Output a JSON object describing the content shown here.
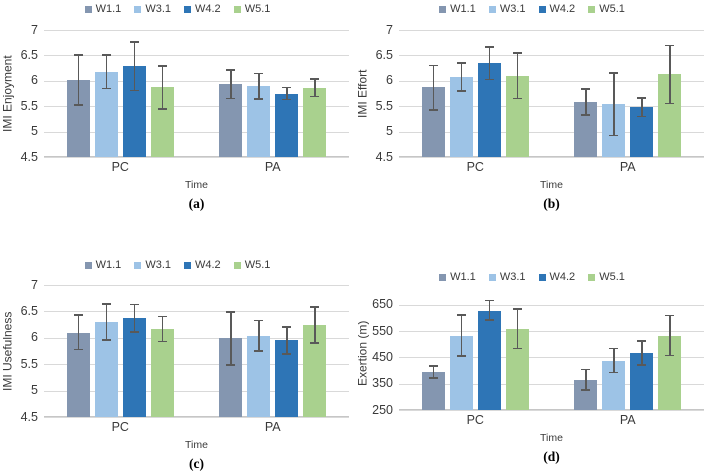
{
  "style": {
    "error_bar_color": "#595959",
    "gridline_color": "#d9d9d9",
    "axis_line_color": "#c6c6c6",
    "text_color": "#3a3a3a",
    "background": "#ffffff"
  },
  "chart_data": [
    {
      "type": "bar",
      "panel": "(a)",
      "ylabel": "IMI Enjoyment",
      "xlabel": "Time",
      "categories": [
        "PC",
        "PA"
      ],
      "yticks": [
        7,
        6.5,
        6,
        5.5,
        5,
        4.5
      ],
      "ylim": [
        4.5,
        7
      ],
      "plot_max": 7,
      "grid": true,
      "legend_position": "top",
      "error_bars": true,
      "series": [
        {
          "name": "W1.1",
          "color": "#8496B0",
          "values": [
            6.02,
            5.93
          ],
          "err_low": [
            5.52,
            5.65
          ],
          "err_high": [
            6.51,
            6.21
          ]
        },
        {
          "name": "W3.1",
          "color": "#9DC3E6",
          "values": [
            6.18,
            5.89
          ],
          "err_low": [
            5.85,
            5.64
          ],
          "err_high": [
            6.51,
            6.14
          ]
        },
        {
          "name": "W4.2",
          "color": "#2E75B6",
          "values": [
            6.29,
            5.75
          ],
          "err_low": [
            5.81,
            5.63
          ],
          "err_high": [
            6.76,
            5.87
          ]
        },
        {
          "name": "W5.1",
          "color": "#A9D18E",
          "values": [
            5.87,
            5.86
          ],
          "err_low": [
            5.45,
            5.69
          ],
          "err_high": [
            6.29,
            6.04
          ]
        }
      ]
    },
    {
      "type": "bar",
      "panel": "(b)",
      "ylabel": "IMI Effort",
      "xlabel": "Time",
      "categories": [
        "PC",
        "PA"
      ],
      "yticks": [
        7,
        6.5,
        6,
        5.5,
        5,
        4.5
      ],
      "ylim": [
        4.5,
        7
      ],
      "plot_max": 7,
      "grid": true,
      "legend_position": "top",
      "error_bars": true,
      "series": [
        {
          "name": "W1.1",
          "color": "#8496B0",
          "values": [
            5.87,
            5.58
          ],
          "err_low": [
            5.43,
            5.33
          ],
          "err_high": [
            6.3,
            5.84
          ]
        },
        {
          "name": "W3.1",
          "color": "#9DC3E6",
          "values": [
            6.08,
            5.54
          ],
          "err_low": [
            5.8,
            4.92
          ],
          "err_high": [
            6.35,
            6.15
          ]
        },
        {
          "name": "W4.2",
          "color": "#2E75B6",
          "values": [
            6.35,
            5.48
          ],
          "err_low": [
            6.03,
            5.3
          ],
          "err_high": [
            6.67,
            5.66
          ]
        },
        {
          "name": "W5.1",
          "color": "#A9D18E",
          "values": [
            6.09,
            6.13
          ],
          "err_low": [
            5.65,
            5.55
          ],
          "err_high": [
            6.55,
            6.7
          ]
        }
      ]
    },
    {
      "type": "bar",
      "panel": "(c)",
      "ylabel": "IMI Usefulness",
      "xlabel": "Time",
      "categories": [
        "PC",
        "PA"
      ],
      "yticks": [
        7,
        6.5,
        6,
        5.5,
        5,
        4.5
      ],
      "ylim": [
        4.5,
        7
      ],
      "plot_max": 7,
      "grid": true,
      "legend_position": "top",
      "error_bars": true,
      "series": [
        {
          "name": "W1.1",
          "color": "#8496B0",
          "values": [
            6.1,
            5.99
          ],
          "err_low": [
            5.78,
            5.49
          ],
          "err_high": [
            6.43,
            6.49
          ]
        },
        {
          "name": "W3.1",
          "color": "#9DC3E6",
          "values": [
            6.3,
            6.04
          ],
          "err_low": [
            5.96,
            5.75
          ],
          "err_high": [
            6.64,
            6.33
          ]
        },
        {
          "name": "W4.2",
          "color": "#2E75B6",
          "values": [
            6.37,
            5.95
          ],
          "err_low": [
            6.11,
            5.69
          ],
          "err_high": [
            6.63,
            6.21
          ]
        },
        {
          "name": "W5.1",
          "color": "#A9D18E",
          "values": [
            6.17,
            6.24
          ],
          "err_low": [
            5.93,
            5.9
          ],
          "err_high": [
            6.4,
            6.58
          ]
        }
      ]
    },
    {
      "type": "bar",
      "panel": "(d)",
      "ylabel": "Exertion (m)",
      "xlabel": "Time",
      "categories": [
        "PC",
        "PA"
      ],
      "yticks": [
        650,
        550,
        450,
        350,
        250
      ],
      "ylim": [
        250,
        650
      ],
      "plot_max": 680,
      "grid": true,
      "legend_position": "top",
      "error_bars": true,
      "series": [
        {
          "name": "W1.1",
          "color": "#8496B0",
          "values": [
            395,
            365
          ],
          "err_low": [
            372,
            326
          ],
          "err_high": [
            418,
            405
          ]
        },
        {
          "name": "W3.1",
          "color": "#9DC3E6",
          "values": [
            530,
            437
          ],
          "err_low": [
            456,
            393
          ],
          "err_high": [
            612,
            485
          ]
        },
        {
          "name": "W4.2",
          "color": "#2E75B6",
          "values": [
            627,
            466
          ],
          "err_low": [
            593,
            422
          ],
          "err_high": [
            667,
            513
          ]
        },
        {
          "name": "W5.1",
          "color": "#A9D18E",
          "values": [
            559,
            530
          ],
          "err_low": [
            485,
            457
          ],
          "err_high": [
            634,
            610
          ]
        }
      ]
    }
  ]
}
